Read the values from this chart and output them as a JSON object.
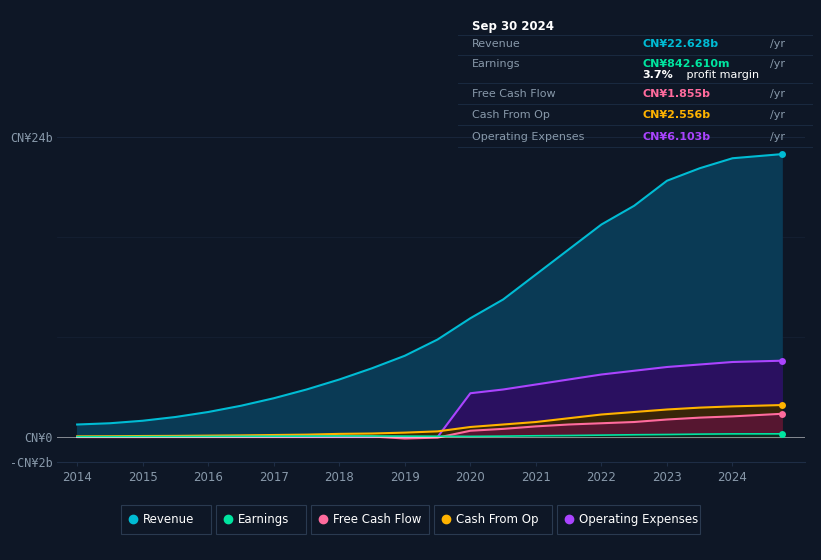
{
  "background_color": "#0e1726",
  "chart_bg": "#0e1726",
  "grid_color": "#1e2d45",
  "text_color": "#8899aa",
  "years": [
    2014.0,
    2014.5,
    2015.0,
    2015.5,
    2016.0,
    2016.5,
    2017.0,
    2017.5,
    2018.0,
    2018.5,
    2019.0,
    2019.5,
    2020.0,
    2020.5,
    2021.0,
    2021.5,
    2022.0,
    2022.5,
    2023.0,
    2023.5,
    2024.0,
    2024.75
  ],
  "revenue": [
    1.0,
    1.1,
    1.3,
    1.6,
    2.0,
    2.5,
    3.1,
    3.8,
    4.6,
    5.5,
    6.5,
    7.8,
    9.5,
    11.0,
    13.0,
    15.0,
    17.0,
    18.5,
    20.5,
    21.5,
    22.3,
    22.628
  ],
  "earnings": [
    0.02,
    0.02,
    0.03,
    0.03,
    0.04,
    0.05,
    0.06,
    0.07,
    0.08,
    0.08,
    0.07,
    0.06,
    0.05,
    0.07,
    0.1,
    0.12,
    0.15,
    0.18,
    0.2,
    0.23,
    0.25,
    0.253
  ],
  "free_cash_flow": [
    0.0,
    0.0,
    0.0,
    0.01,
    0.01,
    0.02,
    0.03,
    0.04,
    0.05,
    0.04,
    -0.12,
    -0.05,
    0.5,
    0.65,
    0.85,
    1.0,
    1.1,
    1.2,
    1.4,
    1.55,
    1.65,
    1.855
  ],
  "cash_from_op": [
    0.05,
    0.06,
    0.08,
    0.09,
    0.11,
    0.13,
    0.16,
    0.19,
    0.25,
    0.28,
    0.35,
    0.45,
    0.8,
    1.0,
    1.2,
    1.5,
    1.8,
    2.0,
    2.2,
    2.35,
    2.45,
    2.556
  ],
  "op_expenses": [
    0.0,
    0.0,
    0.0,
    0.0,
    0.0,
    0.0,
    0.0,
    0.0,
    0.0,
    0.0,
    0.0,
    0.0,
    3.5,
    3.8,
    4.2,
    4.6,
    5.0,
    5.3,
    5.6,
    5.8,
    6.0,
    6.103
  ],
  "revenue_color": "#00bcd4",
  "earnings_color": "#00e5a0",
  "fcf_color": "#ff6b9d",
  "cashop_color": "#ffb300",
  "opex_color": "#aa44ff",
  "revenue_fill": "#0a3a55",
  "opex_fill": "#2a1060",
  "fcf_fill": "#5a1535",
  "cashop_fill": "#3a2800",
  "earnings_fill": "#003320",
  "ylim": [
    -2.0,
    26.0
  ],
  "xticks": [
    2014,
    2015,
    2016,
    2017,
    2018,
    2019,
    2020,
    2021,
    2022,
    2023,
    2024
  ],
  "tooltip_title": "Sep 30 2024",
  "tooltip_bg": "#060d18",
  "tooltip_border": "#2a3a50",
  "tooltip_line_color": "#1a2a40",
  "legend_items": [
    "Revenue",
    "Earnings",
    "Free Cash Flow",
    "Cash From Op",
    "Operating Expenses"
  ],
  "legend_colors": [
    "#00bcd4",
    "#00e5a0",
    "#ff6b9d",
    "#ffb300",
    "#aa44ff"
  ]
}
